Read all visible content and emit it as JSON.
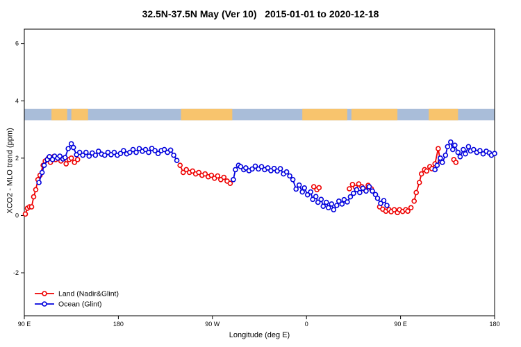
{
  "chart_data": {
    "type": "line",
    "title": "32.5N-37.5N May (Ver 10)   2015-01-01 to 2020-12-18",
    "xlabel": "Longitude (deg E)",
    "ylabel": "XCO2 - MLO trend (ppm)",
    "xlim": [
      90,
      540
    ],
    "ylim": [
      -3.5,
      6.5
    ],
    "axis_note": "longitude axis wraps eastward: 90E, 180, 90W, 0, 90E, 180",
    "grid": false,
    "legend_position": "bottom-left",
    "x_ticks": [
      {
        "value": 90,
        "label": "90 E"
      },
      {
        "value": 180,
        "label": "180"
      },
      {
        "value": 270,
        "label": "90 W"
      },
      {
        "value": 360,
        "label": "0"
      },
      {
        "value": 450,
        "label": "90 E"
      },
      {
        "value": 540,
        "label": "180"
      }
    ],
    "y_ticks": [
      {
        "value": -2,
        "label": "-2"
      },
      {
        "value": 0,
        "label": "0"
      },
      {
        "value": 2,
        "label": "2"
      },
      {
        "value": 4,
        "label": "4"
      },
      {
        "value": 6,
        "label": "6"
      }
    ],
    "map_band": {
      "y_range": [
        3.32,
        3.72
      ],
      "ocean_color": "#a9bdd9",
      "land_color": "#f8c46d",
      "land_segments": [
        [
          116,
          131
        ],
        [
          135,
          151
        ],
        [
          240,
          289
        ],
        [
          356,
          399
        ],
        [
          403,
          447
        ],
        [
          477,
          505
        ]
      ]
    },
    "series": [
      {
        "name": "Land (Nadir&Glint)",
        "color": "#ee0000",
        "marker": "open-circle",
        "segments": [
          [
            [
              91,
              0.05
            ],
            [
              93,
              0.25
            ],
            [
              95,
              0.3
            ],
            [
              97,
              0.3
            ],
            [
              99,
              0.65
            ],
            [
              101,
              0.9
            ],
            [
              103,
              1.25
            ],
            [
              105,
              1.4
            ],
            [
              108,
              1.75
            ],
            [
              110,
              1.9
            ],
            [
              113,
              2.0
            ],
            [
              115,
              1.85
            ],
            [
              118,
              2.05
            ],
            [
              120,
              1.95
            ],
            [
              123,
              2.0
            ],
            [
              125,
              1.9
            ],
            [
              128,
              2.0
            ],
            [
              130,
              1.8
            ],
            [
              133,
              1.95
            ],
            [
              135,
              2.0
            ],
            [
              138,
              1.85
            ],
            [
              141,
              1.95
            ]
          ],
          [
            [
              239,
              1.75
            ],
            [
              242,
              1.5
            ],
            [
              245,
              1.6
            ],
            [
              248,
              1.5
            ],
            [
              251,
              1.55
            ],
            [
              254,
              1.45
            ],
            [
              257,
              1.5
            ],
            [
              260,
              1.4
            ],
            [
              263,
              1.45
            ],
            [
              266,
              1.35
            ],
            [
              269,
              1.4
            ],
            [
              272,
              1.3
            ],
            [
              275,
              1.38
            ],
            [
              278,
              1.25
            ],
            [
              281,
              1.33
            ],
            [
              284,
              1.2
            ],
            [
              287,
              1.12
            ]
          ],
          [
            [
              367,
              1.0
            ],
            [
              370,
              0.9
            ],
            [
              372,
              0.97
            ]
          ],
          [
            [
              401,
              0.93
            ],
            [
              404,
              1.08
            ],
            [
              407,
              0.98
            ],
            [
              410,
              1.1
            ],
            [
              413,
              1.0
            ],
            [
              416,
              0.9
            ],
            [
              419,
              1.05
            ],
            [
              422,
              0.93
            ]
          ],
          [
            [
              430,
              0.3
            ],
            [
              433,
              0.22
            ],
            [
              436,
              0.15
            ],
            [
              439,
              0.2
            ],
            [
              441,
              0.13
            ],
            [
              444,
              0.2
            ],
            [
              447,
              0.1
            ],
            [
              449,
              0.2
            ],
            [
              452,
              0.14
            ],
            [
              455,
              0.2
            ],
            [
              457,
              0.15
            ],
            [
              460,
              0.27
            ]
          ],
          [
            [
              463,
              0.5
            ],
            [
              465,
              0.8
            ],
            [
              468,
              1.15
            ],
            [
              470,
              1.45
            ],
            [
              473,
              1.6
            ],
            [
              475,
              1.55
            ],
            [
              478,
              1.7
            ],
            [
              480,
              1.63
            ],
            [
              483,
              1.8
            ],
            [
              486,
              2.33
            ],
            [
              488,
              1.9
            ]
          ],
          [
            [
              501,
              1.95
            ],
            [
              503,
              1.85
            ]
          ]
        ]
      },
      {
        "name": "Ocean (Glint)",
        "color": "#0000dd",
        "marker": "open-circle",
        "segments": [
          [
            [
              104,
              1.15
            ],
            [
              107,
              1.5
            ],
            [
              109,
              1.75
            ],
            [
              112,
              1.95
            ],
            [
              114,
              2.05
            ],
            [
              117,
              1.95
            ],
            [
              119,
              2.07
            ],
            [
              122,
              2.0
            ],
            [
              124,
              2.07
            ],
            [
              127,
              1.97
            ],
            [
              129,
              2.02
            ],
            [
              132,
              2.33
            ],
            [
              135,
              2.5
            ],
            [
              137,
              2.37
            ],
            [
              140,
              2.12
            ],
            [
              143,
              2.2
            ],
            [
              146,
              2.1
            ],
            [
              149,
              2.2
            ],
            [
              152,
              2.07
            ],
            [
              155,
              2.18
            ],
            [
              158,
              2.1
            ],
            [
              161,
              2.24
            ],
            [
              164,
              2.14
            ],
            [
              167,
              2.1
            ],
            [
              170,
              2.2
            ],
            [
              173,
              2.12
            ],
            [
              176,
              2.2
            ],
            [
              179,
              2.1
            ],
            [
              182,
              2.16
            ],
            [
              185,
              2.26
            ],
            [
              188,
              2.15
            ],
            [
              191,
              2.2
            ],
            [
              194,
              2.3
            ],
            [
              197,
              2.2
            ],
            [
              200,
              2.33
            ],
            [
              203,
              2.24
            ],
            [
              206,
              2.3
            ],
            [
              209,
              2.2
            ],
            [
              212,
              2.34
            ],
            [
              215,
              2.26
            ],
            [
              218,
              2.16
            ],
            [
              221,
              2.26
            ],
            [
              224,
              2.3
            ],
            [
              227,
              2.2
            ],
            [
              230,
              2.28
            ],
            [
              233,
              2.1
            ],
            [
              236,
              1.92
            ]
          ],
          [
            [
              290,
              1.25
            ],
            [
              292,
              1.6
            ],
            [
              295,
              1.75
            ],
            [
              297,
              1.7
            ],
            [
              300,
              1.6
            ],
            [
              302,
              1.66
            ],
            [
              305,
              1.56
            ],
            [
              308,
              1.62
            ],
            [
              311,
              1.72
            ],
            [
              314,
              1.62
            ],
            [
              317,
              1.7
            ],
            [
              320,
              1.6
            ],
            [
              323,
              1.66
            ],
            [
              326,
              1.56
            ],
            [
              329,
              1.64
            ],
            [
              332,
              1.55
            ],
            [
              335,
              1.63
            ],
            [
              338,
              1.45
            ],
            [
              341,
              1.52
            ],
            [
              344,
              1.38
            ],
            [
              347,
              1.25
            ],
            [
              350,
              0.92
            ],
            [
              353,
              1.06
            ],
            [
              356,
              0.82
            ],
            [
              358,
              0.96
            ],
            [
              361,
              0.72
            ],
            [
              364,
              0.82
            ],
            [
              366,
              0.56
            ],
            [
              369,
              0.66
            ],
            [
              371,
              0.46
            ],
            [
              374,
              0.56
            ],
            [
              376,
              0.32
            ],
            [
              379,
              0.46
            ],
            [
              381,
              0.27
            ],
            [
              384,
              0.4
            ],
            [
              386,
              0.2
            ],
            [
              389,
              0.35
            ],
            [
              391,
              0.5
            ],
            [
              394,
              0.4
            ],
            [
              396,
              0.55
            ],
            [
              399,
              0.47
            ],
            [
              402,
              0.65
            ],
            [
              405,
              0.77
            ],
            [
              408,
              0.9
            ],
            [
              411,
              0.8
            ],
            [
              414,
              0.95
            ],
            [
              417,
              0.85
            ],
            [
              420,
              1.0
            ],
            [
              423,
              0.85
            ],
            [
              426,
              0.73
            ],
            [
              428,
              0.6
            ],
            [
              431,
              0.42
            ],
            [
              434,
              0.52
            ],
            [
              437,
              0.35
            ]
          ],
          [
            [
              483,
              1.6
            ],
            [
              485,
              1.75
            ],
            [
              488,
              2.0
            ],
            [
              490,
              1.85
            ],
            [
              493,
              2.1
            ],
            [
              495,
              2.4
            ],
            [
              498,
              2.56
            ],
            [
              500,
              2.3
            ],
            [
              502,
              2.45
            ],
            [
              505,
              2.2
            ],
            [
              507,
              2.05
            ],
            [
              510,
              2.3
            ],
            [
              512,
              2.15
            ],
            [
              515,
              2.4
            ],
            [
              517,
              2.25
            ],
            [
              520,
              2.3
            ],
            [
              523,
              2.2
            ],
            [
              526,
              2.26
            ],
            [
              529,
              2.15
            ],
            [
              532,
              2.24
            ],
            [
              535,
              2.18
            ],
            [
              537,
              2.1
            ],
            [
              540,
              2.16
            ]
          ]
        ]
      }
    ]
  },
  "legend": {
    "items": [
      {
        "label": "Land (Nadir&Glint)",
        "color": "#ee0000"
      },
      {
        "label": "Ocean (Glint)",
        "color": "#0000dd"
      }
    ]
  }
}
